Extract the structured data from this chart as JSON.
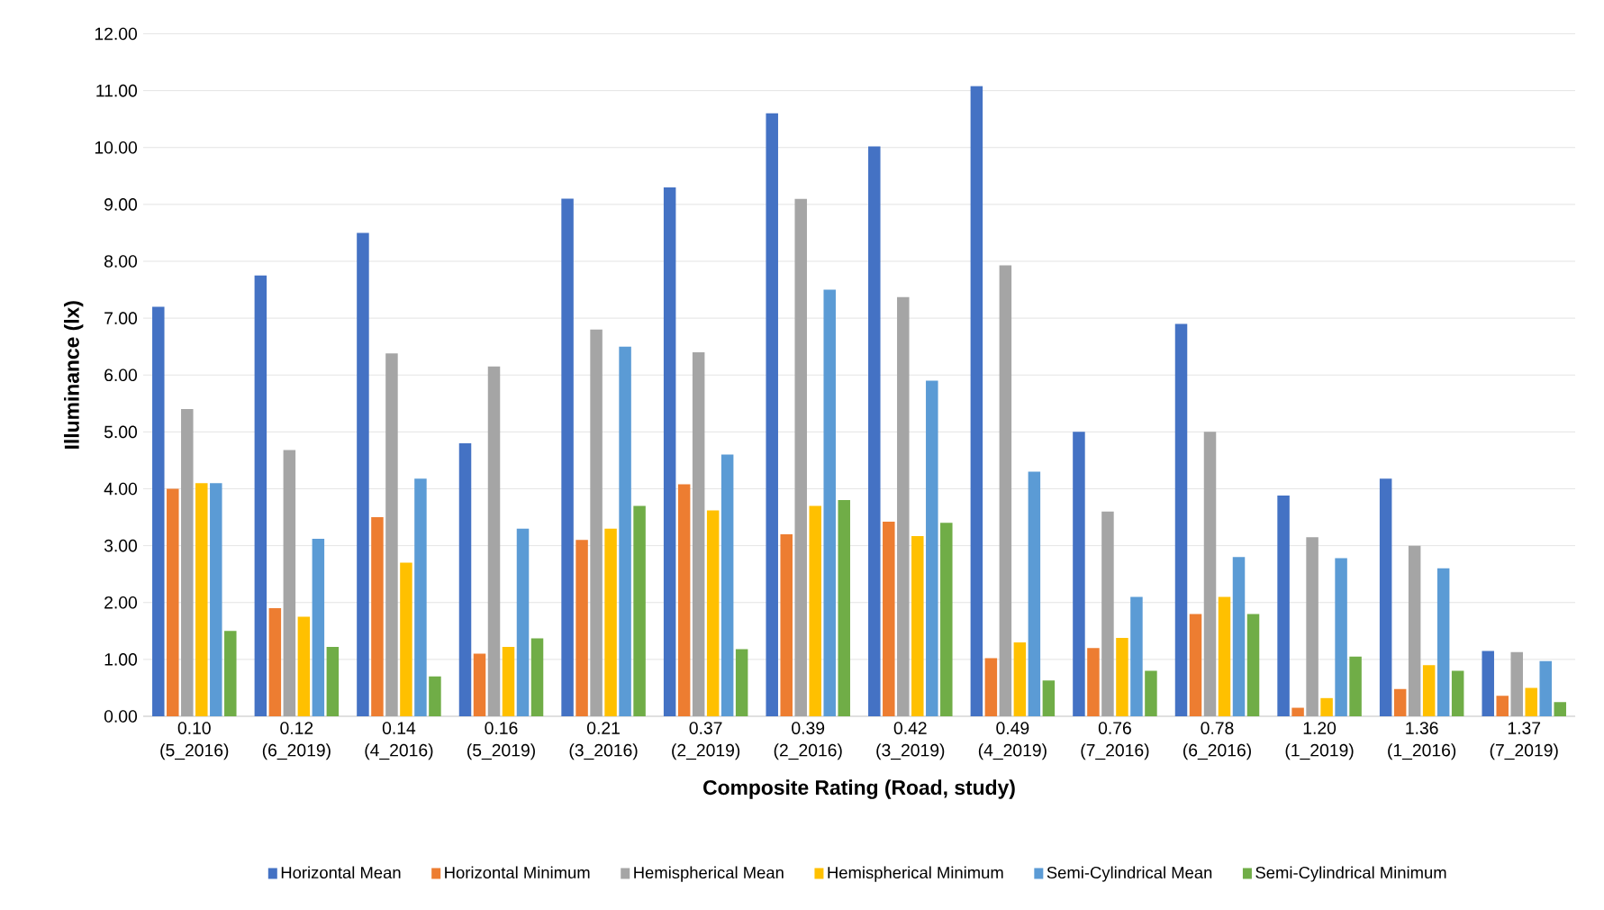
{
  "chart_data": {
    "type": "bar",
    "xlabel": "Composite Rating (Road, study)",
    "ylabel": "Illuminance (lx)",
    "categories": [
      "0.10 (5_2016)",
      "0.12 (6_2019)",
      "0.14 (4_2016)",
      "0.16 (5_2019)",
      "0.21 (3_2016)",
      "0.37 (2_2019)",
      "0.39 (2_2016)",
      "0.42 (3_2019)",
      "0.49 (4_2019)",
      "0.76 (7_2016)",
      "0.78 (6_2016)",
      "1.20 (1_2019)",
      "1.36 (1_2016)",
      "1.37 (7_2019)"
    ],
    "series": [
      {
        "name": "Horizontal Mean",
        "color": "#4472c4",
        "values": [
          7.2,
          7.75,
          8.5,
          4.8,
          9.1,
          9.3,
          10.6,
          10.02,
          11.08,
          5.0,
          6.9,
          3.88,
          4.18,
          1.15
        ]
      },
      {
        "name": "Horizontal Minimum",
        "color": "#ed7d31",
        "values": [
          4.0,
          1.9,
          3.5,
          1.1,
          3.1,
          4.08,
          3.2,
          3.42,
          1.02,
          1.2,
          1.8,
          0.15,
          0.48,
          0.36
        ]
      },
      {
        "name": "Hemispherical Mean",
        "color": "#a5a5a5",
        "values": [
          5.4,
          4.68,
          6.38,
          6.15,
          6.8,
          6.4,
          9.1,
          7.37,
          7.93,
          3.6,
          5.0,
          3.15,
          3.0,
          1.13
        ]
      },
      {
        "name": "Hemispherical Minimum",
        "color": "#ffc000",
        "values": [
          4.1,
          1.75,
          2.7,
          1.22,
          3.3,
          3.62,
          3.7,
          3.17,
          1.3,
          1.38,
          2.1,
          0.32,
          0.9,
          0.5
        ]
      },
      {
        "name": "Semi-Cylindrical Mean",
        "color": "#5b9bd5",
        "values": [
          4.1,
          3.12,
          4.18,
          3.3,
          6.5,
          4.6,
          7.5,
          5.9,
          4.3,
          2.1,
          2.8,
          2.78,
          2.6,
          0.97
        ]
      },
      {
        "name": "Semi-Cylindrical Minimum",
        "color": "#70ad47",
        "values": [
          1.5,
          1.22,
          0.7,
          1.37,
          3.7,
          1.18,
          3.8,
          3.4,
          0.63,
          0.8,
          1.8,
          1.05,
          0.8,
          0.25
        ]
      }
    ],
    "ylim": [
      0,
      12
    ],
    "yticks": [
      {
        "value": 0,
        "label": "0.00"
      },
      {
        "value": 1,
        "label": "1.00"
      },
      {
        "value": 2,
        "label": "2.00"
      },
      {
        "value": 3,
        "label": "3.00"
      },
      {
        "value": 4,
        "label": "4.00"
      },
      {
        "value": 5,
        "label": "5.00"
      },
      {
        "value": 6,
        "label": "6.00"
      },
      {
        "value": 7,
        "label": "7.00"
      },
      {
        "value": 8,
        "label": "8.00"
      },
      {
        "value": 9,
        "label": "9.00"
      },
      {
        "value": 10,
        "label": "10.00"
      },
      {
        "value": 11,
        "label": "11.00"
      },
      {
        "value": 12,
        "label": "12.00"
      }
    ],
    "grid": "y",
    "legend": "bottom"
  }
}
